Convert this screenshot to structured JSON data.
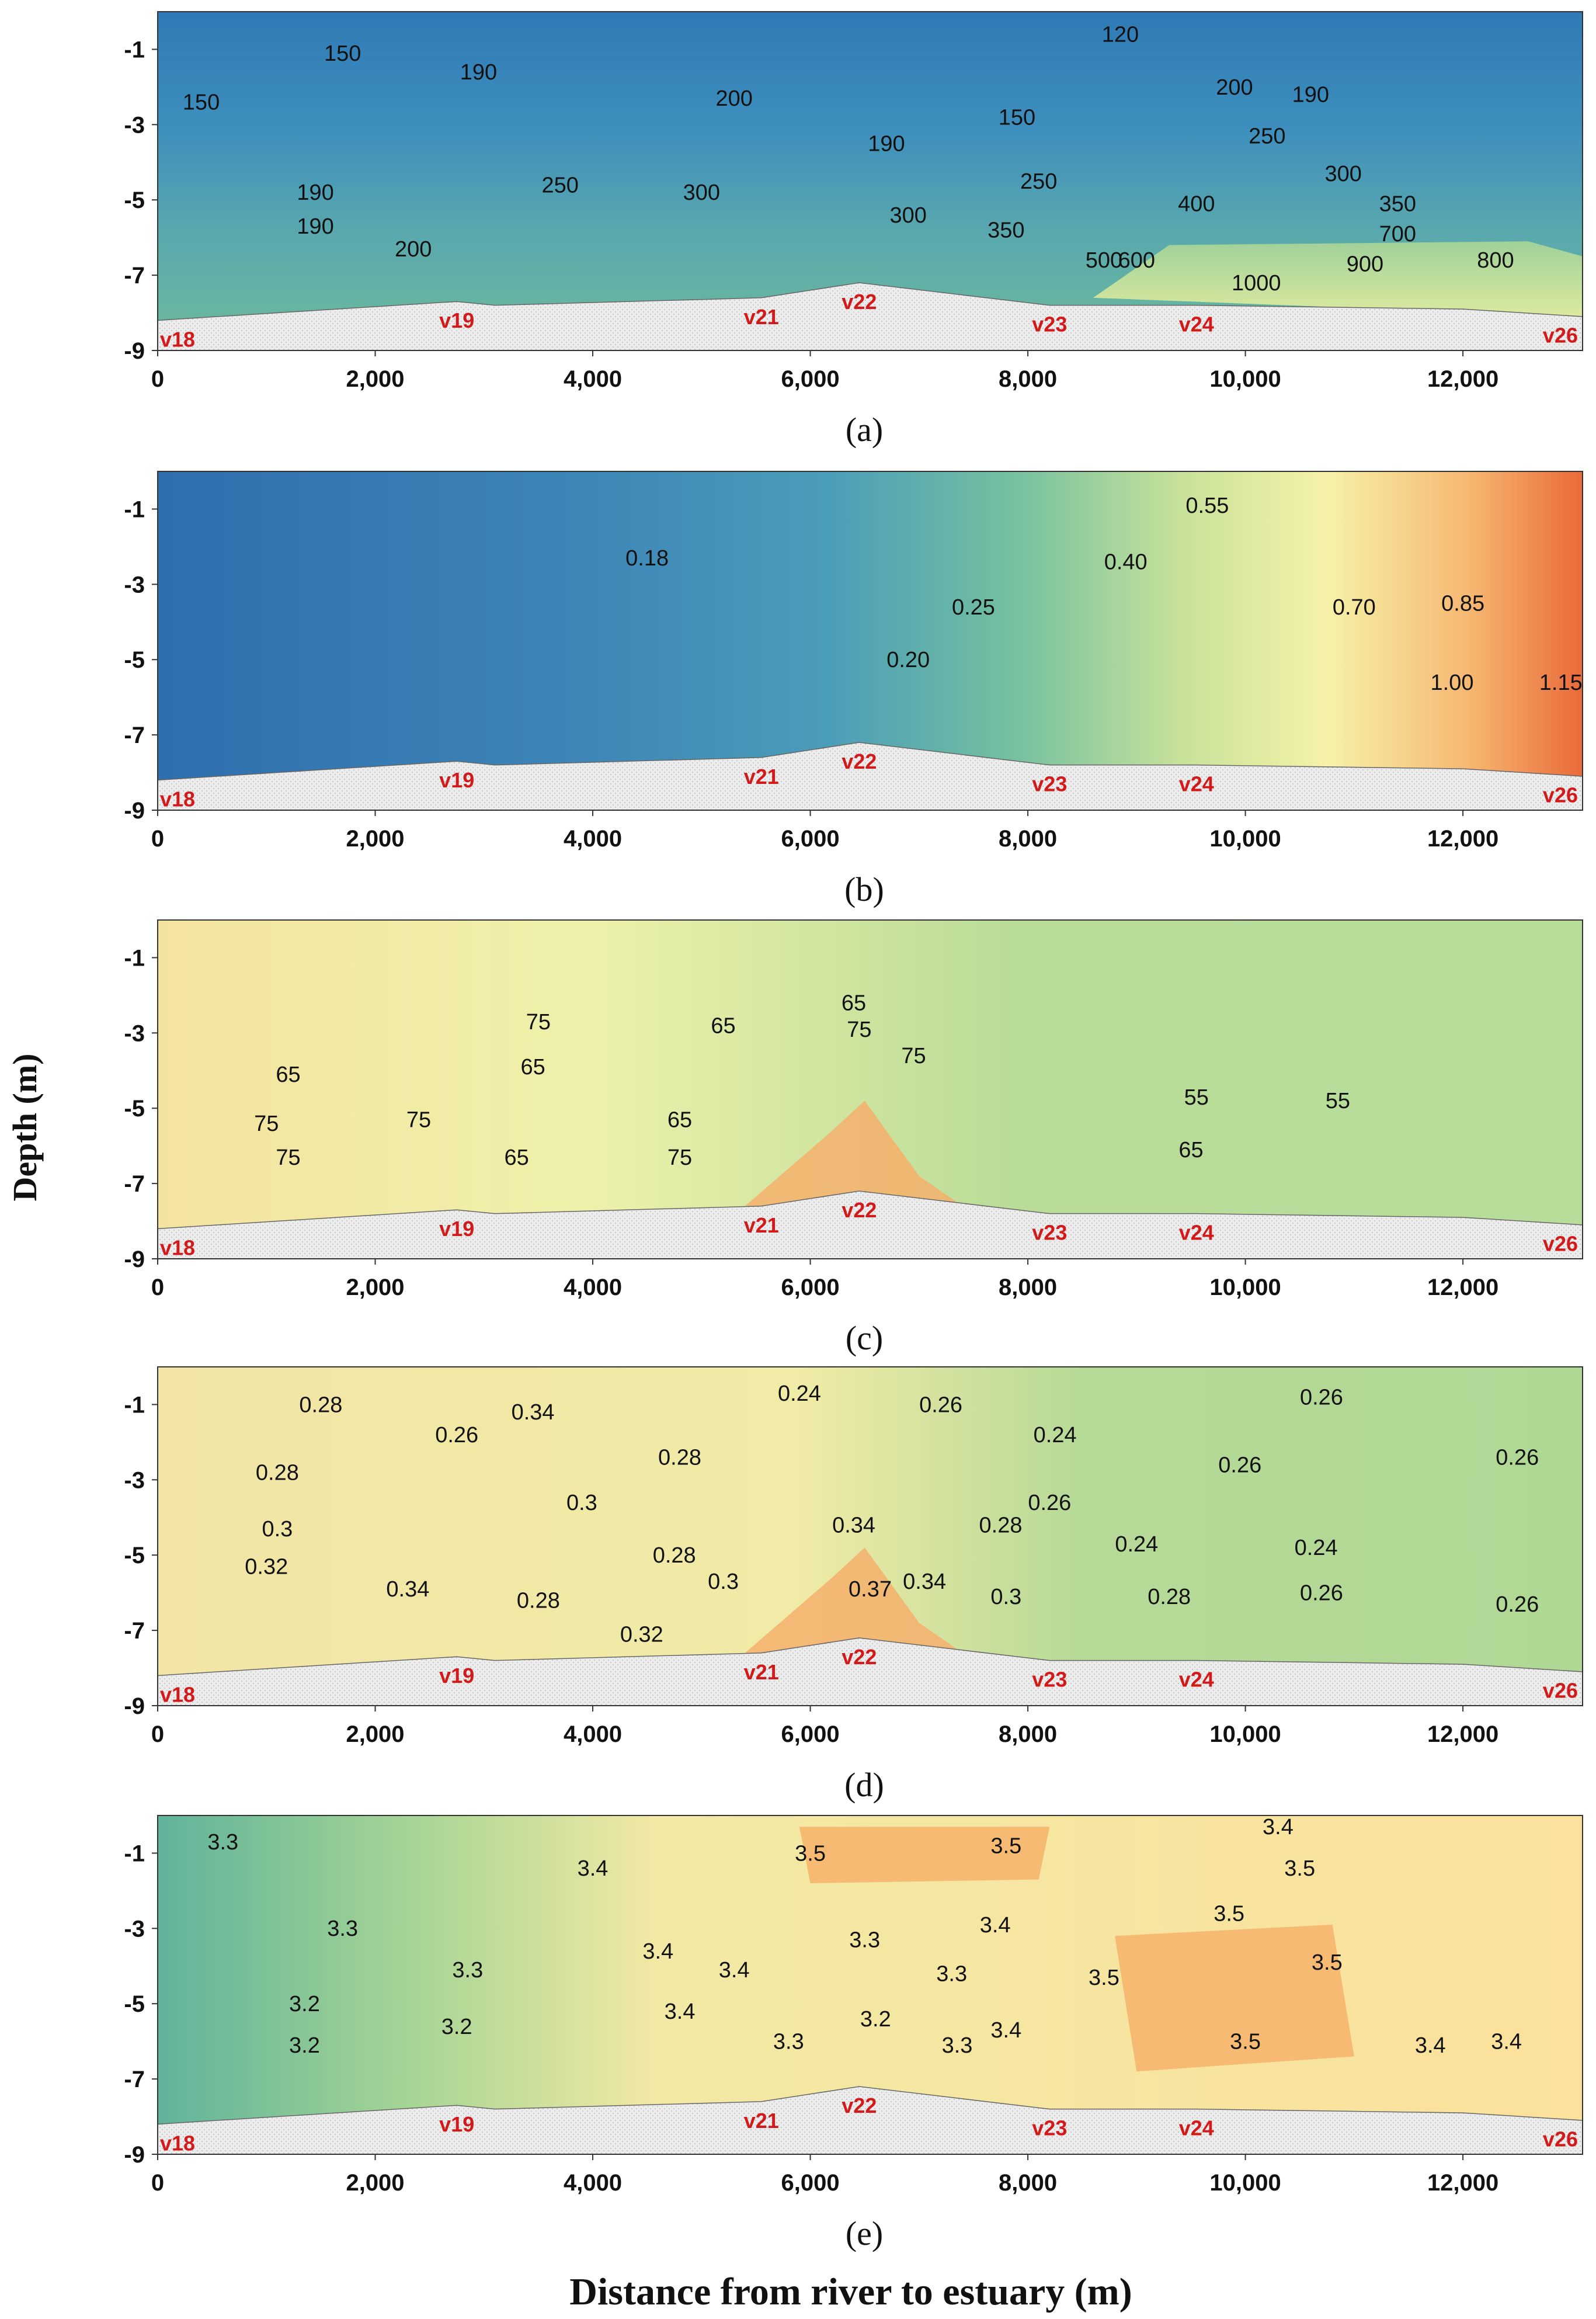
{
  "chart_data": {
    "type": "heatmap",
    "xlabel": "Distance from river to estuary (m)",
    "ylabel": "Depth (m)",
    "xlim": [
      0,
      13100
    ],
    "ylim": [
      -9,
      0
    ],
    "x_ticks": [
      {
        "value": 0,
        "label": "0"
      },
      {
        "value": 2000,
        "label": "2,000"
      },
      {
        "value": 4000,
        "label": "4,000"
      },
      {
        "value": 6000,
        "label": "6,000"
      },
      {
        "value": 8000,
        "label": "8,000"
      },
      {
        "value": 10000,
        "label": "10,000"
      },
      {
        "value": 12000,
        "label": "12,000"
      }
    ],
    "y_ticks": [
      {
        "value": -1,
        "label": "-1"
      },
      {
        "value": -3,
        "label": "-3"
      },
      {
        "value": -5,
        "label": "-5"
      },
      {
        "value": -7,
        "label": "-7"
      },
      {
        "value": -9,
        "label": "-9"
      }
    ],
    "stations": [
      {
        "name": "v18",
        "x": 0
      },
      {
        "name": "v19",
        "x": 2750
      },
      {
        "name": "v21",
        "x": 5550
      },
      {
        "name": "v22",
        "x": 6450
      },
      {
        "name": "v23",
        "x": 8200
      },
      {
        "name": "v24",
        "x": 9550
      },
      {
        "name": "v26",
        "x": 13050
      }
    ],
    "bed_profile": [
      {
        "x": 0,
        "depth": -8.2
      },
      {
        "x": 2750,
        "depth": -7.7
      },
      {
        "x": 3100,
        "depth": -7.8
      },
      {
        "x": 5550,
        "depth": -7.6
      },
      {
        "x": 6450,
        "depth": -7.2
      },
      {
        "x": 8200,
        "depth": -7.8
      },
      {
        "x": 9550,
        "depth": -7.8
      },
      {
        "x": 12000,
        "depth": -7.9
      },
      {
        "x": 13100,
        "depth": -8.1
      }
    ],
    "panels": [
      {
        "label": "(a)",
        "contour_labels": [
          {
            "text": "150",
            "x": 1700,
            "depth": -1.3
          },
          {
            "text": "150",
            "x": 400,
            "depth": -2.6
          },
          {
            "text": "190",
            "x": 2950,
            "depth": -1.8
          },
          {
            "text": "200",
            "x": 5300,
            "depth": -2.5
          },
          {
            "text": "190",
            "x": 6700,
            "depth": -3.7
          },
          {
            "text": "150",
            "x": 7900,
            "depth": -3.0
          },
          {
            "text": "120",
            "x": 8850,
            "depth": -0.8
          },
          {
            "text": "200",
            "x": 9900,
            "depth": -2.2
          },
          {
            "text": "190",
            "x": 10600,
            "depth": -2.4
          },
          {
            "text": "250",
            "x": 10200,
            "depth": -3.5
          },
          {
            "text": "300",
            "x": 10900,
            "depth": -4.5
          },
          {
            "text": "350",
            "x": 11400,
            "depth": -5.3
          },
          {
            "text": "400",
            "x": 9550,
            "depth": -5.3
          },
          {
            "text": "250",
            "x": 8100,
            "depth": -4.7
          },
          {
            "text": "190",
            "x": 1450,
            "depth": -5.0
          },
          {
            "text": "190",
            "x": 1450,
            "depth": -5.9
          },
          {
            "text": "200",
            "x": 2350,
            "depth": -6.5
          },
          {
            "text": "250",
            "x": 3700,
            "depth": -4.8
          },
          {
            "text": "300",
            "x": 5000,
            "depth": -5.0
          },
          {
            "text": "300",
            "x": 6900,
            "depth": -5.6
          },
          {
            "text": "350",
            "x": 7800,
            "depth": -6.0
          },
          {
            "text": "500",
            "x": 8700,
            "depth": -6.8
          },
          {
            "text": "600",
            "x": 9000,
            "depth": -6.8
          },
          {
            "text": "700",
            "x": 11400,
            "depth": -6.1
          },
          {
            "text": "900",
            "x": 11100,
            "depth": -6.9
          },
          {
            "text": "800",
            "x": 12300,
            "depth": -6.8
          },
          {
            "text": "1000",
            "x": 10100,
            "depth": -7.4
          }
        ]
      },
      {
        "label": "(b)",
        "contour_labels": [
          {
            "text": "0.18",
            "x": 4500,
            "depth": -2.5
          },
          {
            "text": "0.20",
            "x": 6900,
            "depth": -5.2
          },
          {
            "text": "0.25",
            "x": 7500,
            "depth": -3.8
          },
          {
            "text": "0.40",
            "x": 8900,
            "depth": -2.6
          },
          {
            "text": "0.55",
            "x": 9650,
            "depth": -1.1
          },
          {
            "text": "0.70",
            "x": 11000,
            "depth": -3.8
          },
          {
            "text": "0.85",
            "x": 12000,
            "depth": -3.7
          },
          {
            "text": "1.00",
            "x": 11900,
            "depth": -5.8
          },
          {
            "text": "1.15",
            "x": 12900,
            "depth": -5.8
          }
        ]
      },
      {
        "label": "(c)",
        "contour_labels": [
          {
            "text": "75",
            "x": 3500,
            "depth": -2.9
          },
          {
            "text": "65",
            "x": 5200,
            "depth": -3.0
          },
          {
            "text": "65",
            "x": 6400,
            "depth": -2.4
          },
          {
            "text": "75",
            "x": 6450,
            "depth": -3.1
          },
          {
            "text": "75",
            "x": 6950,
            "depth": -3.8
          },
          {
            "text": "65",
            "x": 1200,
            "depth": -4.3
          },
          {
            "text": "65",
            "x": 3450,
            "depth": -4.1
          },
          {
            "text": "75",
            "x": 1000,
            "depth": -5.6
          },
          {
            "text": "75",
            "x": 2400,
            "depth": -5.5
          },
          {
            "text": "65",
            "x": 4800,
            "depth": -5.5
          },
          {
            "text": "75",
            "x": 1200,
            "depth": -6.5
          },
          {
            "text": "65",
            "x": 3300,
            "depth": -6.5
          },
          {
            "text": "75",
            "x": 4800,
            "depth": -6.5
          },
          {
            "text": "55",
            "x": 9550,
            "depth": -4.9
          },
          {
            "text": "55",
            "x": 10850,
            "depth": -5.0
          },
          {
            "text": "65",
            "x": 9500,
            "depth": -6.3
          }
        ]
      },
      {
        "label": "(d)",
        "contour_labels": [
          {
            "text": "0.28",
            "x": 1500,
            "depth": -1.2
          },
          {
            "text": "0.26",
            "x": 2750,
            "depth": -2.0
          },
          {
            "text": "0.34",
            "x": 3450,
            "depth": -1.4
          },
          {
            "text": "0.24",
            "x": 5900,
            "depth": -0.9
          },
          {
            "text": "0.26",
            "x": 7200,
            "depth": -1.2
          },
          {
            "text": "0.24",
            "x": 8250,
            "depth": -2.0
          },
          {
            "text": "0.26",
            "x": 10700,
            "depth": -1.0
          },
          {
            "text": "0.26",
            "x": 12500,
            "depth": -2.6
          },
          {
            "text": "0.28",
            "x": 1100,
            "depth": -3.0
          },
          {
            "text": "0.28",
            "x": 4800,
            "depth": -2.6
          },
          {
            "text": "0.3",
            "x": 3900,
            "depth": -3.8
          },
          {
            "text": "0.26",
            "x": 9950,
            "depth": -2.8
          },
          {
            "text": "0.26",
            "x": 8200,
            "depth": -3.8
          },
          {
            "text": "0.34",
            "x": 6400,
            "depth": -4.4
          },
          {
            "text": "0.28",
            "x": 7750,
            "depth": -4.4
          },
          {
            "text": "0.3",
            "x": 1100,
            "depth": -4.5
          },
          {
            "text": "0.32",
            "x": 1000,
            "depth": -5.5
          },
          {
            "text": "0.28",
            "x": 4750,
            "depth": -5.2
          },
          {
            "text": "0.3",
            "x": 5200,
            "depth": -5.9
          },
          {
            "text": "0.34",
            "x": 2300,
            "depth": -6.1
          },
          {
            "text": "0.28",
            "x": 3500,
            "depth": -6.4
          },
          {
            "text": "0.32",
            "x": 4450,
            "depth": -7.3
          },
          {
            "text": "0.37",
            "x": 6550,
            "depth": -6.1
          },
          {
            "text": "0.34",
            "x": 7050,
            "depth": -5.9
          },
          {
            "text": "0.3",
            "x": 7800,
            "depth": -6.3
          },
          {
            "text": "0.24",
            "x": 9000,
            "depth": -4.9
          },
          {
            "text": "0.24",
            "x": 10650,
            "depth": -5.0
          },
          {
            "text": "0.28",
            "x": 9300,
            "depth": -6.3
          },
          {
            "text": "0.26",
            "x": 10700,
            "depth": -6.2
          },
          {
            "text": "0.26",
            "x": 12500,
            "depth": -6.5
          }
        ]
      },
      {
        "label": "(e)",
        "contour_labels": [
          {
            "text": "3.3",
            "x": 600,
            "depth": -0.9
          },
          {
            "text": "3.4",
            "x": 4000,
            "depth": -1.6
          },
          {
            "text": "3.5",
            "x": 6000,
            "depth": -1.2
          },
          {
            "text": "3.5",
            "x": 7800,
            "depth": -1.0
          },
          {
            "text": "3.4",
            "x": 10300,
            "depth": -0.5
          },
          {
            "text": "3.5",
            "x": 10500,
            "depth": -1.6
          },
          {
            "text": "3.5",
            "x": 9850,
            "depth": -2.8
          },
          {
            "text": "3.3",
            "x": 1700,
            "depth": -3.2
          },
          {
            "text": "3.3",
            "x": 2850,
            "depth": -4.3
          },
          {
            "text": "3.4",
            "x": 4600,
            "depth": -3.8
          },
          {
            "text": "3.4",
            "x": 5300,
            "depth": -4.3
          },
          {
            "text": "3.3",
            "x": 6500,
            "depth": -3.5
          },
          {
            "text": "3.4",
            "x": 7700,
            "depth": -3.1
          },
          {
            "text": "3.3",
            "x": 7300,
            "depth": -4.4
          },
          {
            "text": "3.5",
            "x": 8700,
            "depth": -4.5
          },
          {
            "text": "3.5",
            "x": 10750,
            "depth": -4.1
          },
          {
            "text": "3.2",
            "x": 1350,
            "depth": -5.2
          },
          {
            "text": "3.2",
            "x": 1350,
            "depth": -6.3
          },
          {
            "text": "3.2",
            "x": 2750,
            "depth": -5.8
          },
          {
            "text": "3.4",
            "x": 4800,
            "depth": -5.4
          },
          {
            "text": "3.3",
            "x": 5800,
            "depth": -6.2
          },
          {
            "text": "3.2",
            "x": 6600,
            "depth": -5.6
          },
          {
            "text": "3.3",
            "x": 7350,
            "depth": -6.3
          },
          {
            "text": "3.4",
            "x": 7800,
            "depth": -5.9
          },
          {
            "text": "3.5",
            "x": 10000,
            "depth": -6.2
          },
          {
            "text": "3.4",
            "x": 11700,
            "depth": -6.3
          },
          {
            "text": "3.4",
            "x": 12400,
            "depth": -6.2
          }
        ]
      }
    ]
  }
}
